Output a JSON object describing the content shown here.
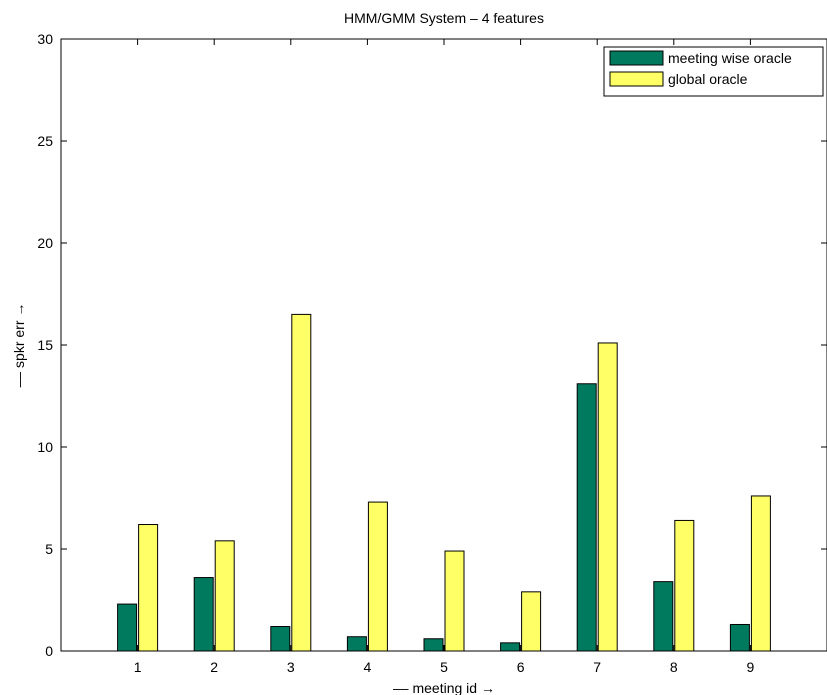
{
  "chart_data": {
    "type": "bar",
    "title": "HMM/GMM System – 4 features",
    "xlabel": "–– meeting id →",
    "ylabel": "–– spkr err →",
    "categories": [
      "1",
      "2",
      "3",
      "4",
      "5",
      "6",
      "7",
      "8",
      "9"
    ],
    "series": [
      {
        "name": "meeting wise oracle",
        "color": "#007a5e",
        "values": [
          2.3,
          3.6,
          1.2,
          0.7,
          0.6,
          0.4,
          13.1,
          3.4,
          1.3
        ]
      },
      {
        "name": "global oracle",
        "color": "#ffff66",
        "values": [
          6.2,
          5.4,
          16.5,
          7.3,
          4.9,
          2.9,
          15.1,
          6.4,
          7.6
        ]
      }
    ],
    "ylim": [
      0,
      30
    ],
    "xlim": [
      0,
      10
    ],
    "yticks": [
      "0",
      "5",
      "10",
      "15",
      "20",
      "25",
      "30"
    ],
    "grid": false,
    "legend_position": "top-right"
  }
}
